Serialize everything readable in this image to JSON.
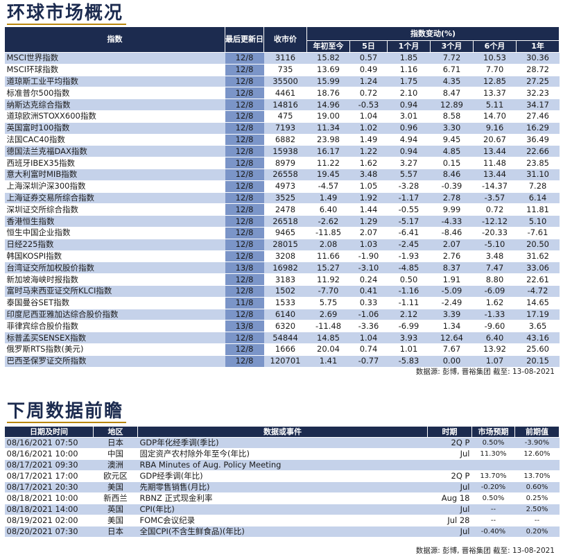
{
  "market_section": {
    "title": "环球市场概况",
    "headers": {
      "index": "指数",
      "last_update": "最后更新日",
      "close": "收市价",
      "change_group": "指数变动(%)",
      "ytd": "年初至今",
      "d5": "5日",
      "m1": "1个月",
      "m3": "3个月",
      "m6": "6个月",
      "y1": "1年"
    },
    "rows": [
      {
        "name": "MSCI世界指数",
        "date": "12/8",
        "close": "3116",
        "ytd": "15.82",
        "d5": "0.57",
        "m1": "1.85",
        "m3": "7.72",
        "m6": "10.53",
        "y1": "30.36"
      },
      {
        "name": "MSCI环球指数",
        "date": "12/8",
        "close": "735",
        "ytd": "13.69",
        "d5": "0.49",
        "m1": "1.16",
        "m3": "6.71",
        "m6": "7.70",
        "y1": "28.72"
      },
      {
        "name": "道琼斯工业平均指数",
        "date": "12/8",
        "close": "35500",
        "ytd": "15.99",
        "d5": "1.24",
        "m1": "1.75",
        "m3": "4.35",
        "m6": "12.85",
        "y1": "27.25"
      },
      {
        "name": "标准普尔500指数",
        "date": "12/8",
        "close": "4461",
        "ytd": "18.76",
        "d5": "0.72",
        "m1": "2.10",
        "m3": "8.47",
        "m6": "13.37",
        "y1": "32.23"
      },
      {
        "name": "纳斯达克综合指数",
        "date": "12/8",
        "close": "14816",
        "ytd": "14.96",
        "d5": "-0.53",
        "m1": "0.94",
        "m3": "12.89",
        "m6": "5.11",
        "y1": "34.17"
      },
      {
        "name": "道琼欧洲STOXX600指数",
        "date": "12/8",
        "close": "475",
        "ytd": "19.00",
        "d5": "1.04",
        "m1": "3.01",
        "m3": "8.58",
        "m6": "14.70",
        "y1": "27.46"
      },
      {
        "name": "英国富时100指数",
        "date": "12/8",
        "close": "7193",
        "ytd": "11.34",
        "d5": "1.02",
        "m1": "0.96",
        "m3": "3.30",
        "m6": "9.16",
        "y1": "16.29"
      },
      {
        "name": "法国CAC40指数",
        "date": "12/8",
        "close": "6882",
        "ytd": "23.98",
        "d5": "1.49",
        "m1": "4.94",
        "m3": "9.45",
        "m6": "20.67",
        "y1": "36.49"
      },
      {
        "name": "德国法兰克福DAX指数",
        "date": "12/8",
        "close": "15938",
        "ytd": "16.17",
        "d5": "1.22",
        "m1": "0.94",
        "m3": "4.85",
        "m6": "13.44",
        "y1": "22.66"
      },
      {
        "name": "西班牙IBEX35指数",
        "date": "12/8",
        "close": "8979",
        "ytd": "11.22",
        "d5": "1.62",
        "m1": "3.27",
        "m3": "0.15",
        "m6": "11.48",
        "y1": "23.85"
      },
      {
        "name": "意大利富时MIB指数",
        "date": "12/8",
        "close": "26558",
        "ytd": "19.45",
        "d5": "3.48",
        "m1": "5.57",
        "m3": "8.46",
        "m6": "13.44",
        "y1": "31.10"
      },
      {
        "name": "上海深圳沪深300指数",
        "date": "12/8",
        "close": "4973",
        "ytd": "-4.57",
        "d5": "1.05",
        "m1": "-3.28",
        "m3": "-0.39",
        "m6": "-14.37",
        "y1": "7.28"
      },
      {
        "name": "上海证券交易所综合指数",
        "date": "12/8",
        "close": "3525",
        "ytd": "1.49",
        "d5": "1.92",
        "m1": "-1.17",
        "m3": "2.78",
        "m6": "-3.57",
        "y1": "6.14"
      },
      {
        "name": "深圳证交所综合指数",
        "date": "12/8",
        "close": "2478",
        "ytd": "6.40",
        "d5": "1.44",
        "m1": "-0.55",
        "m3": "9.99",
        "m6": "0.72",
        "y1": "11.81"
      },
      {
        "name": "香港恒生指数",
        "date": "12/8",
        "close": "26518",
        "ytd": "-2.62",
        "d5": "1.29",
        "m1": "-5.17",
        "m3": "-4.33",
        "m6": "-12.12",
        "y1": "5.10"
      },
      {
        "name": "恒生中国企业指数",
        "date": "12/8",
        "close": "9465",
        "ytd": "-11.85",
        "d5": "2.07",
        "m1": "-6.41",
        "m3": "-8.46",
        "m6": "-20.33",
        "y1": "-7.61"
      },
      {
        "name": "日经225指数",
        "date": "12/8",
        "close": "28015",
        "ytd": "2.08",
        "d5": "1.03",
        "m1": "-2.45",
        "m3": "2.07",
        "m6": "-5.10",
        "y1": "20.50"
      },
      {
        "name": "韩国KOSPI指数",
        "date": "12/8",
        "close": "3208",
        "ytd": "11.66",
        "d5": "-1.90",
        "m1": "-1.93",
        "m3": "2.76",
        "m6": "3.48",
        "y1": "31.62"
      },
      {
        "name": "台湾证交所加权股价指数",
        "date": "13/8",
        "close": "16982",
        "ytd": "15.27",
        "d5": "-3.10",
        "m1": "-4.85",
        "m3": "8.37",
        "m6": "7.47",
        "y1": "33.06"
      },
      {
        "name": "新加坡海峡时报指数",
        "date": "12/8",
        "close": "3183",
        "ytd": "11.92",
        "d5": "0.24",
        "m1": "0.50",
        "m3": "1.91",
        "m6": "8.80",
        "y1": "22.61"
      },
      {
        "name": "富时马来西亚证交所KLCI指数",
        "date": "12/8",
        "close": "1502",
        "ytd": "-7.70",
        "d5": "0.41",
        "m1": "-1.16",
        "m3": "-5.09",
        "m6": "-6.09",
        "y1": "-4.72"
      },
      {
        "name": "泰国曼谷SET指数",
        "date": "11/8",
        "close": "1533",
        "ytd": "5.75",
        "d5": "0.33",
        "m1": "-1.11",
        "m3": "-2.49",
        "m6": "1.62",
        "y1": "14.65"
      },
      {
        "name": "印度尼西亚雅加达综合股价指数",
        "date": "12/8",
        "close": "6140",
        "ytd": "2.69",
        "d5": "-1.06",
        "m1": "2.12",
        "m3": "3.39",
        "m6": "-1.33",
        "y1": "17.19"
      },
      {
        "name": "菲律宾综合股价指数",
        "date": "13/8",
        "close": "6320",
        "ytd": "-11.48",
        "d5": "-3.36",
        "m1": "-6.99",
        "m3": "1.34",
        "m6": "-9.60",
        "y1": "3.65"
      },
      {
        "name": "标普孟买SENSEX指数",
        "date": "12/8",
        "close": "54844",
        "ytd": "14.85",
        "d5": "1.04",
        "m1": "3.93",
        "m3": "12.64",
        "m6": "6.40",
        "y1": "43.16"
      },
      {
        "name": "俄罗斯RTS指数(美元)",
        "date": "12/8",
        "close": "1666",
        "ytd": "20.04",
        "d5": "0.74",
        "m1": "1.01",
        "m3": "7.67",
        "m6": "13.92",
        "y1": "25.60"
      },
      {
        "name": "巴西圣保罗证交所指数",
        "date": "12/8",
        "close": "120701",
        "ytd": "1.41",
        "d5": "-0.77",
        "m1": "-5.83",
        "m3": "0.00",
        "m6": "1.07",
        "y1": "20.15"
      }
    ],
    "source": "数据源: 彭博, 晋裕集团 截至: 13-08-2021"
  },
  "calendar_section": {
    "title": "下周数据前瞻",
    "headers": {
      "datetime": "日期及时间",
      "region": "地区",
      "event": "数据或事件",
      "period": "时期",
      "forecast": "市场预期",
      "previous": "前期值"
    },
    "rows": [
      {
        "datetime": "08/16/2021 07:50",
        "region": "日本",
        "event": "GDP年化经季调(季比)",
        "period": "2Q P",
        "forecast": "0.50%",
        "previous": "-3.90%"
      },
      {
        "datetime": "08/16/2021 10:00",
        "region": "中国",
        "event": "固定资产农村除外年至今(年比)",
        "period": "Jul",
        "forecast": "11.30%",
        "previous": "12.60%"
      },
      {
        "datetime": "08/17/2021 09:30",
        "region": "澳洲",
        "event": "RBA Minutes of Aug. Policy Meeting",
        "period": "",
        "forecast": "",
        "previous": ""
      },
      {
        "datetime": "08/17/2021 17:00",
        "region": "欧元区",
        "event": "GDP经季调(年比)",
        "period": "2Q P",
        "forecast": "13.70%",
        "previous": "13.70%"
      },
      {
        "datetime": "08/17/2021 20:30",
        "region": "美国",
        "event": "先期零售销售(月比)",
        "period": "Jul",
        "forecast": "-0.20%",
        "previous": "0.60%"
      },
      {
        "datetime": "08/18/2021 10:00",
        "region": "新西兰",
        "event": "RBNZ 正式现金利率",
        "period": "Aug 18",
        "forecast": "0.50%",
        "previous": "0.25%"
      },
      {
        "datetime": "08/18/2021 14:00",
        "region": "英国",
        "event": "CPI(年比)",
        "period": "Jul",
        "forecast": "--",
        "previous": "2.50%"
      },
      {
        "datetime": "08/19/2021 02:00",
        "region": "美国",
        "event": "FOMC会议纪录",
        "period": "Jul 28",
        "forecast": "--",
        "previous": "--"
      },
      {
        "datetime": "08/20/2021 07:30",
        "region": "日本",
        "event": "全国CPI(不含生鲜食品)(年比)",
        "period": "Jul",
        "forecast": "-0.40%",
        "previous": "0.20%"
      }
    ],
    "source": "数据源: 彭博, 晋裕集团 截至: 13-08-2021"
  }
}
